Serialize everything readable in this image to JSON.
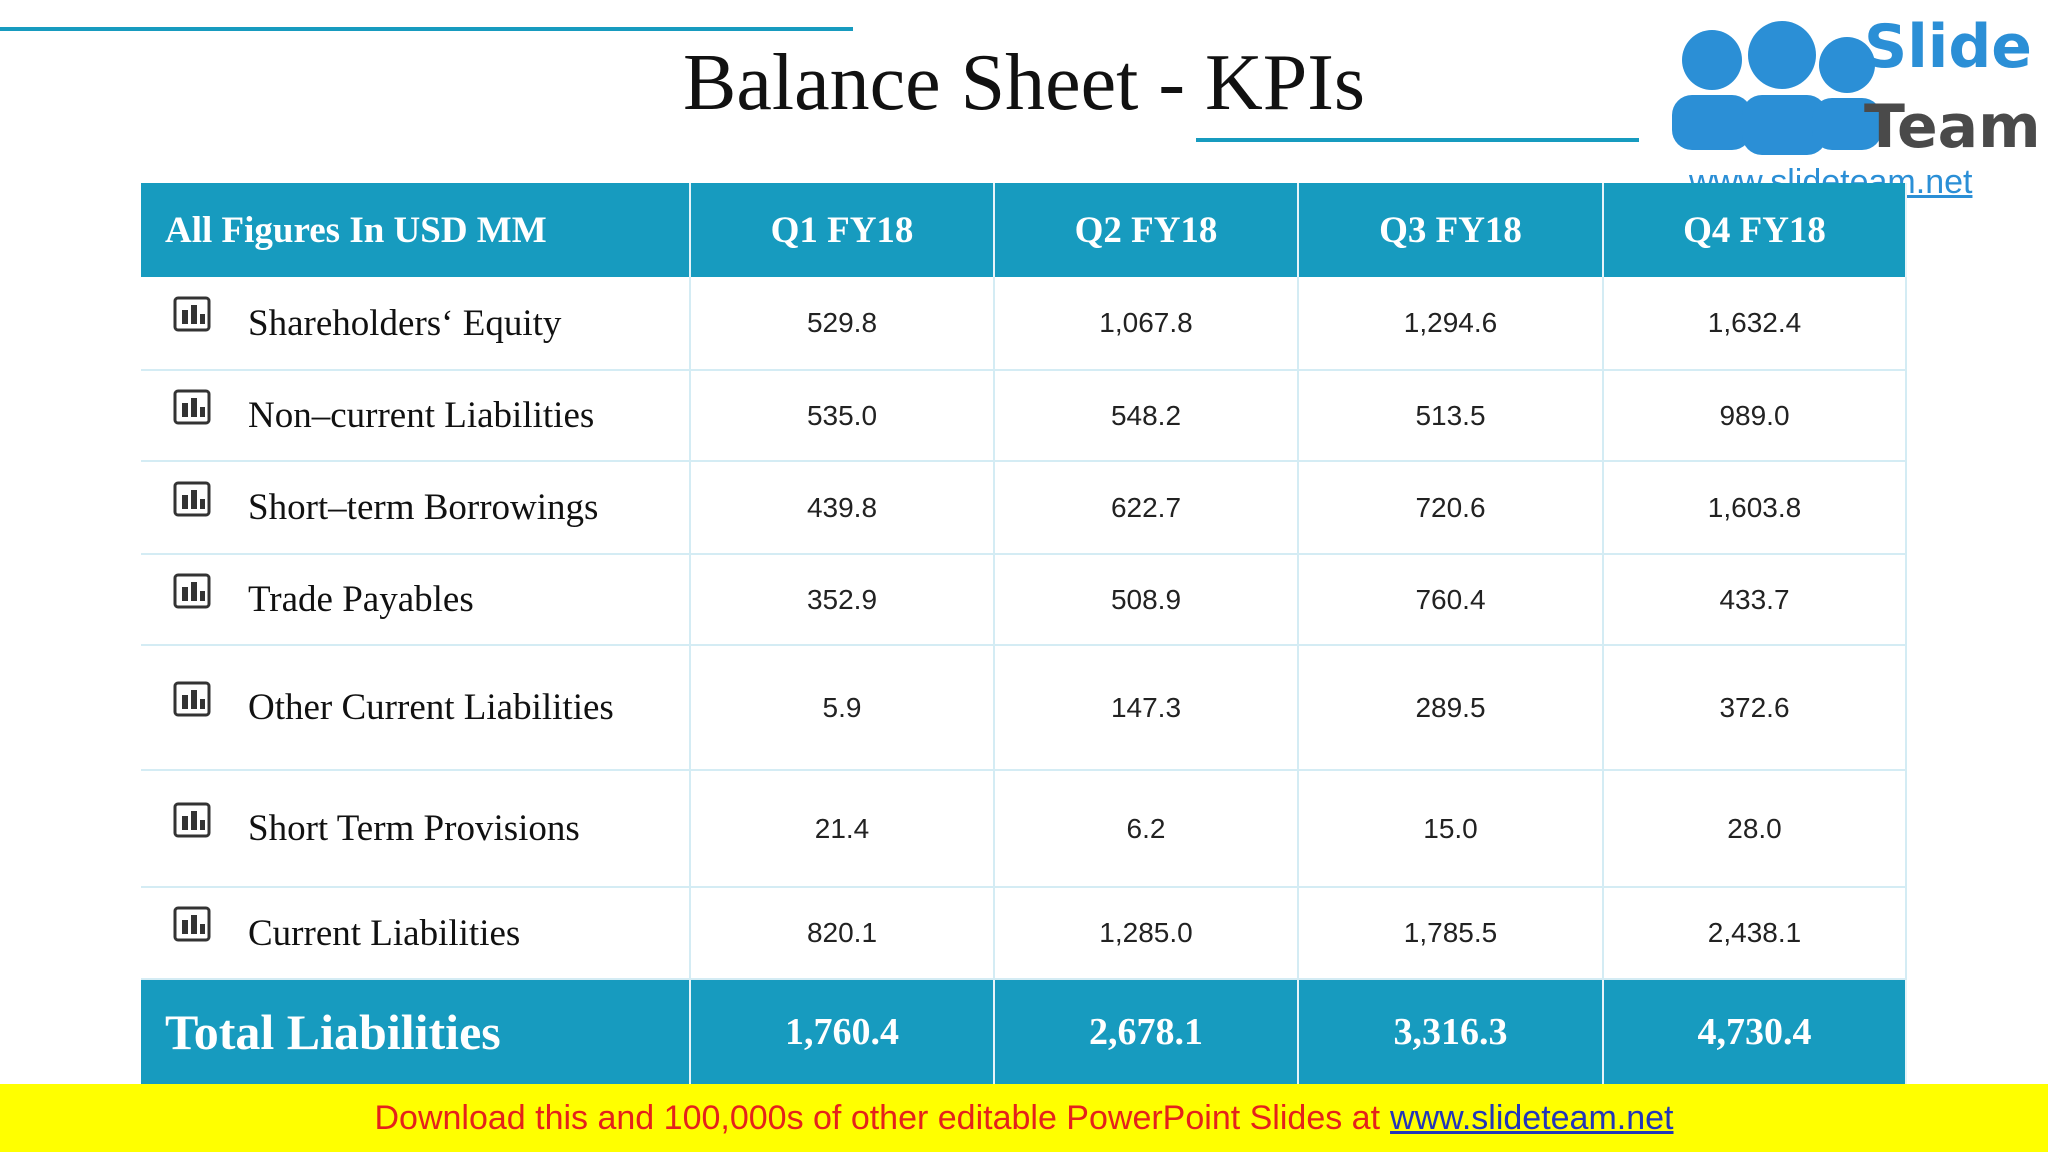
{
  "header": {
    "title": "Balance Sheet - KPIs"
  },
  "logo": {
    "line1": "Slide",
    "line2": "Team",
    "url": "www.slideteam.net"
  },
  "table": {
    "columns": [
      "All Figures In USD MM",
      "Q1 FY18",
      "Q2 FY18",
      "Q3 FY18",
      "Q4 FY18"
    ],
    "rows": [
      {
        "label": "Shareholders‘ Equity",
        "values": [
          "529.8",
          "1,067.8",
          "1,294.6",
          "1,632.4"
        ]
      },
      {
        "label": "Non–current Liabilities",
        "values": [
          "535.0",
          "548.2",
          "513.5",
          "989.0"
        ]
      },
      {
        "label": "Short–term Borrowings",
        "values": [
          "439.8",
          "622.7",
          "720.6",
          "1,603.8"
        ]
      },
      {
        "label": "Trade Payables",
        "values": [
          "352.9",
          "508.9",
          "760.4",
          "433.7"
        ]
      },
      {
        "label": "Other Current Liabilities",
        "values": [
          "5.9",
          "147.3",
          "289.5",
          "372.6"
        ]
      },
      {
        "label": "Short Term Provisions",
        "values": [
          "21.4",
          "6.2",
          "15.0",
          "28.0"
        ]
      },
      {
        "label": "Current Liabilities",
        "values": [
          "820.1",
          "1,285.0",
          "1,785.5",
          "2,438.1"
        ]
      }
    ],
    "total": {
      "label": "Total Liabilities",
      "values": [
        "1,760.4",
        "2,678.1",
        "3,316.3",
        "4,730.4"
      ]
    }
  },
  "footer": {
    "text": "Download this and 100,000s of other editable PowerPoint Slides at",
    "link": "www.slideteam.net"
  }
}
